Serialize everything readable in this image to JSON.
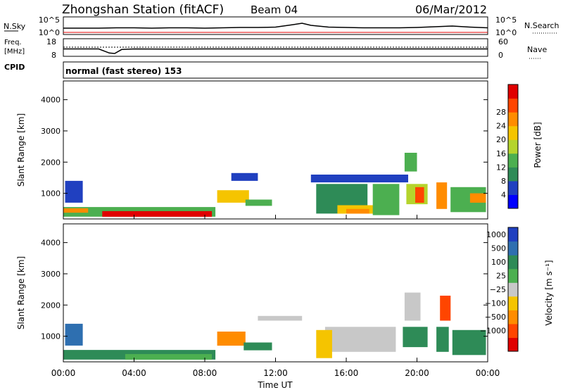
{
  "header": {
    "station_title": "Zhongshan Station (fitACF)",
    "beam": "Beam 04",
    "date": "06/Mar/2012"
  },
  "chart_data": [
    {
      "type": "line",
      "name": "noise-panel",
      "left_labels": [
        "N.Sky",
        "10^5",
        "10^0"
      ],
      "right_labels": [
        "N.Search",
        "10^5",
        "10^0"
      ],
      "ylim_log10": [
        0,
        5
      ],
      "x_hours": [
        0,
        1,
        2,
        3,
        4,
        5,
        6,
        7,
        8,
        9,
        10,
        11,
        12,
        13,
        13.5,
        14,
        15,
        16,
        17,
        18,
        19,
        20,
        21,
        22,
        23,
        24
      ],
      "sky_log10": [
        1.8,
        1.8,
        1.8,
        1.9,
        1.9,
        1.8,
        1.9,
        1.9,
        1.8,
        1.9,
        2.0,
        2.0,
        2.1,
        2.8,
        3.2,
        2.6,
        2.1,
        2.0,
        1.9,
        1.9,
        1.9,
        2.0,
        2.2,
        2.4,
        2.1,
        1.9
      ]
    },
    {
      "type": "line",
      "name": "freq-panel",
      "left_labels": [
        "Freq.",
        "[MHz]",
        "18",
        "8"
      ],
      "right_labels": [
        "Nave",
        "60",
        "0"
      ],
      "ylim": [
        8,
        18
      ],
      "x_hours": [
        0,
        1,
        2,
        2.6,
        2.9,
        3.3,
        4,
        6,
        8,
        10,
        12,
        14,
        16,
        18,
        20,
        22,
        24
      ],
      "freq_mhz": [
        12.2,
        12.2,
        12.2,
        9.9,
        9.6,
        11.9,
        12.2,
        12.1,
        12.2,
        12.2,
        12.2,
        12.2,
        12.2,
        12.2,
        12.2,
        12.2,
        12.2
      ]
    },
    {
      "type": "table",
      "name": "cpid",
      "label": "CPID",
      "value": "normal (fast stereo) 153"
    },
    {
      "type": "heatmap",
      "name": "power",
      "ylabel": "Slant Range [km]",
      "yticks": [
        "1000",
        "2000",
        "3000",
        "4000"
      ],
      "ylim": [
        180,
        4600
      ],
      "xlim_hours": [
        0,
        24
      ],
      "colorbar_label": "Power [dB]",
      "colorbar_ticks": [
        "4",
        "8",
        "12",
        "16",
        "20",
        "24",
        "28"
      ],
      "colors": [
        "#0000ff",
        "#2040c0",
        "#2e8b57",
        "#4caf50",
        "#b5d42c",
        "#f5c400",
        "#ff8c00",
        "#ff4500",
        "#e00000"
      ],
      "regions": [
        {
          "t0": 0,
          "t1": 8.6,
          "r0": 250,
          "r1": 560,
          "c": 3
        },
        {
          "t0": 2.2,
          "t1": 8.4,
          "r0": 250,
          "r1": 430,
          "c": 8
        },
        {
          "t0": 0,
          "t1": 1.4,
          "r0": 380,
          "r1": 520,
          "c": 6
        },
        {
          "t0": 0.1,
          "t1": 1.1,
          "r0": 700,
          "r1": 1400,
          "c": 1
        },
        {
          "t0": 8.7,
          "t1": 10.5,
          "r0": 700,
          "r1": 1100,
          "c": 5
        },
        {
          "t0": 10.3,
          "t1": 11.8,
          "r0": 600,
          "r1": 800,
          "c": 3
        },
        {
          "t0": 9.5,
          "t1": 11.0,
          "r0": 1400,
          "r1": 1650,
          "c": 1
        },
        {
          "t0": 14.3,
          "t1": 17.2,
          "r0": 350,
          "r1": 1300,
          "c": 2
        },
        {
          "t0": 15.5,
          "t1": 17.7,
          "r0": 350,
          "r1": 620,
          "c": 5
        },
        {
          "t0": 16.0,
          "t1": 17.3,
          "r0": 350,
          "r1": 500,
          "c": 6
        },
        {
          "t0": 17.5,
          "t1": 19.0,
          "r0": 300,
          "r1": 1300,
          "c": 3
        },
        {
          "t0": 14.0,
          "t1": 19.5,
          "r0": 1350,
          "r1": 1600,
          "c": 1
        },
        {
          "t0": 19.4,
          "t1": 20.6,
          "r0": 650,
          "r1": 1300,
          "c": 4
        },
        {
          "t0": 19.9,
          "t1": 20.4,
          "r0": 700,
          "r1": 1200,
          "c": 7
        },
        {
          "t0": 21.1,
          "t1": 21.7,
          "r0": 500,
          "r1": 1350,
          "c": 6
        },
        {
          "t0": 21.9,
          "t1": 23.9,
          "r0": 400,
          "r1": 1200,
          "c": 3
        },
        {
          "t0": 23.0,
          "t1": 23.9,
          "r0": 700,
          "r1": 1000,
          "c": 6
        },
        {
          "t0": 19.3,
          "t1": 20.0,
          "r0": 1700,
          "r1": 2300,
          "c": 3
        }
      ]
    },
    {
      "type": "heatmap",
      "name": "velocity",
      "ylabel": "Slant Range [km]",
      "yticks": [
        "1000",
        "2000",
        "3000",
        "4000"
      ],
      "ylim": [
        180,
        4600
      ],
      "xlim_hours": [
        0,
        24
      ],
      "colorbar_label": "Velocity [m s⁻¹]",
      "colorbar_ticks": [
        "1000",
        "500",
        "100",
        "25",
        "−25",
        "−100",
        "−500",
        "−1000"
      ],
      "colors": [
        "#2040c0",
        "#2e6fb0",
        "#2e8b57",
        "#4caf50",
        "#c8c8c8",
        "#f5c400",
        "#ff8c00",
        "#ff4500",
        "#e00000"
      ],
      "regions": [
        {
          "t0": 0,
          "t1": 8.6,
          "r0": 250,
          "r1": 560,
          "c": 2
        },
        {
          "t0": 3.5,
          "t1": 8.4,
          "r0": 250,
          "r1": 430,
          "c": 3
        },
        {
          "t0": 0.1,
          "t1": 1.1,
          "r0": 700,
          "r1": 1400,
          "c": 1
        },
        {
          "t0": 8.7,
          "t1": 10.3,
          "r0": 700,
          "r1": 1150,
          "c": 6
        },
        {
          "t0": 10.2,
          "t1": 11.8,
          "r0": 550,
          "r1": 800,
          "c": 2
        },
        {
          "t0": 14.8,
          "t1": 18.8,
          "r0": 500,
          "r1": 1300,
          "c": 4
        },
        {
          "t0": 14.3,
          "t1": 15.2,
          "r0": 300,
          "r1": 1200,
          "c": 5
        },
        {
          "t0": 11.0,
          "t1": 13.5,
          "r0": 1500,
          "r1": 1650,
          "c": 4
        },
        {
          "t0": 19.2,
          "t1": 20.6,
          "r0": 650,
          "r1": 1300,
          "c": 2
        },
        {
          "t0": 19.3,
          "t1": 20.2,
          "r0": 1500,
          "r1": 2400,
          "c": 4
        },
        {
          "t0": 21.3,
          "t1": 21.9,
          "r0": 1500,
          "r1": 2300,
          "c": 7
        },
        {
          "t0": 21.1,
          "t1": 21.8,
          "r0": 500,
          "r1": 1300,
          "c": 2
        },
        {
          "t0": 22.0,
          "t1": 23.9,
          "r0": 400,
          "r1": 1200,
          "c": 2
        }
      ]
    },
    {
      "type": "axis",
      "name": "time-axis",
      "xlabel": "Time UT",
      "xticks": [
        "00:00",
        "04:00",
        "08:00",
        "12:00",
        "16:00",
        "20:00",
        "00:00"
      ]
    }
  ]
}
